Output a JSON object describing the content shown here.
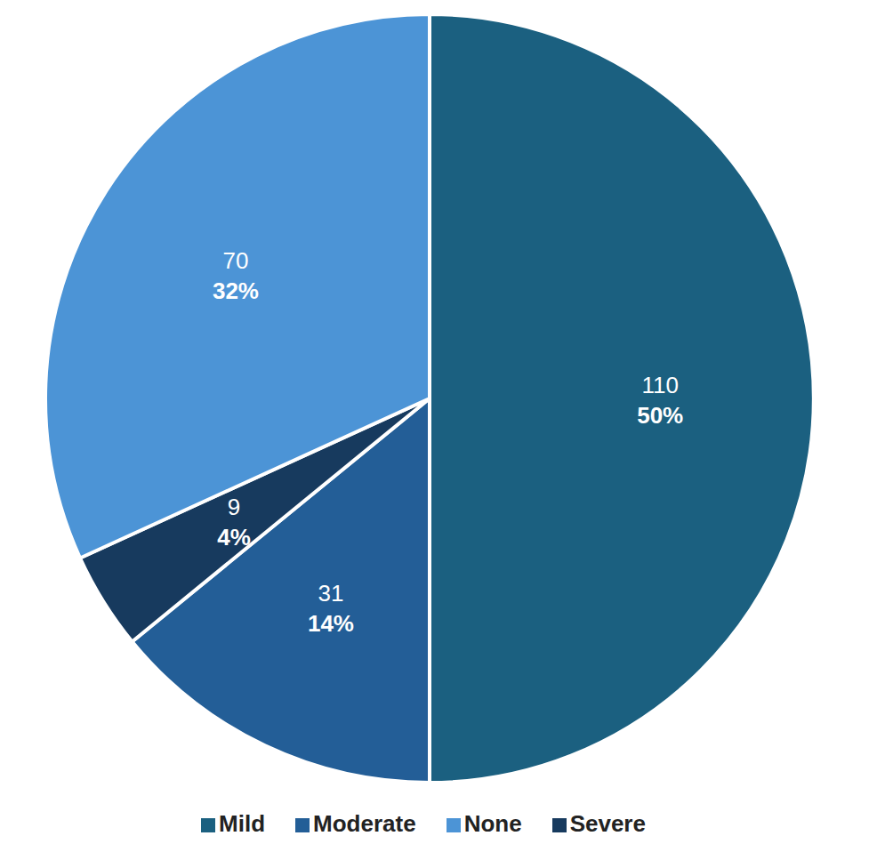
{
  "chart_data": {
    "type": "pie",
    "categories": [
      "Mild",
      "Moderate",
      "Severe",
      "None"
    ],
    "values": [
      110,
      31,
      9,
      70
    ],
    "percentages": [
      {
        "value": 50,
        "label": "50%"
      },
      {
        "value": 14,
        "label": "14%"
      },
      {
        "value": 4,
        "label": "4%"
      },
      {
        "value": 32,
        "label": "32%"
      }
    ],
    "colors": [
      "#1b6080",
      "#235e97",
      "#173a5e",
      "#4c94d6"
    ],
    "data_labels": true,
    "legend": "bottom"
  }
}
